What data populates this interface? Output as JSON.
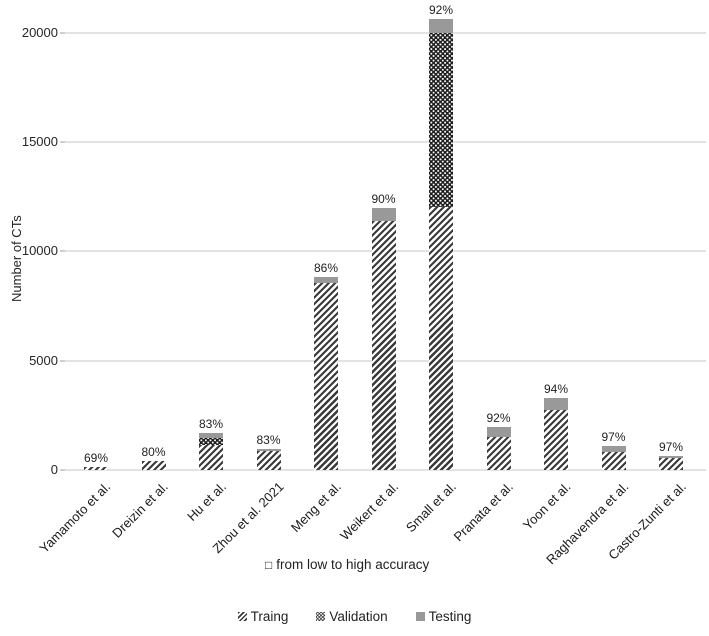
{
  "figure": {
    "y_axis_title": "Number of CTs",
    "caption": {
      "icon": "□",
      "text": "from low to high accuracy"
    }
  },
  "chart_data": {
    "type": "bar",
    "stacked": true,
    "title": "",
    "xlabel": "",
    "ylabel": "Number of CTs",
    "ylim": [
      0,
      21500
    ],
    "yticks": [
      0,
      5000,
      10000,
      15000,
      20000
    ],
    "grid": true,
    "legend_position": "bottom",
    "categories": [
      "Yamamoto et al.",
      "Dreizin et al.",
      "Hu et al.",
      "Zhou et al. 2021",
      "Meng et al.",
      "Weikert et al.",
      "Small et al.",
      "Pranata et al.",
      "Yoon et al.",
      "Raghavendra et al.",
      "Castro-Zunti et al."
    ],
    "bar_labels": [
      "69%",
      "80%",
      "83%",
      "83%",
      "86%",
      "90%",
      "92%",
      "92%",
      "94%",
      "97%",
      "97%"
    ],
    "bar_label_meaning": "model accuracy per study, ordered from low to high",
    "series": [
      {
        "name": "Traing",
        "pattern": "diagonal-hatch",
        "values": [
          130,
          430,
          1150,
          870,
          8550,
          11400,
          12050,
          1510,
          2740,
          820,
          530
        ]
      },
      {
        "name": "Validation",
        "pattern": "white-dots-on-dark",
        "values": [
          0,
          0,
          320,
          0,
          0,
          0,
          7950,
          0,
          0,
          0,
          0
        ]
      },
      {
        "name": "Testing",
        "pattern": "solid",
        "color": "#999999",
        "values": [
          0,
          0,
          220,
          90,
          280,
          600,
          650,
          460,
          550,
          280,
          110
        ]
      }
    ],
    "totals": [
      130,
      430,
      1690,
      960,
      8830,
      12000,
      20650,
      1970,
      3290,
      1100,
      640
    ]
  },
  "colors": {
    "hatch_dark": "#3b3b3b",
    "validation_dark": "#1e1e1e",
    "testing_gray": "#999999",
    "gridline": "#e3e3e3",
    "text": "#262626"
  }
}
